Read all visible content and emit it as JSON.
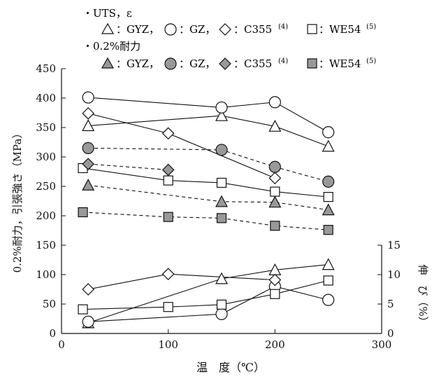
{
  "legend": {
    "group1_title": "・UTS，ε",
    "group2_title": "・0.2%耐力",
    "items": [
      {
        "label": "：GYZ，",
        "sup": ""
      },
      {
        "label": "：GZ，",
        "sup": ""
      },
      {
        "label": "：C355",
        "sup": "(4)"
      },
      {
        "label": "：WE54",
        "sup": "(5)"
      }
    ]
  },
  "chart_data": {
    "type": "line",
    "xlabel": "温　度（℃）",
    "ylabel": "0.2%耐力，引張強さ（MPa）",
    "y2label": "伸　び（%）",
    "xlim": [
      0,
      300
    ],
    "ylim": [
      0,
      450
    ],
    "y2lim": [
      0,
      15
    ],
    "xticks": [
      0,
      100,
      200,
      300
    ],
    "yticks": [
      0,
      50,
      100,
      150,
      200,
      250,
      300,
      350,
      400,
      450
    ],
    "y2ticks": [
      0,
      5,
      10,
      15
    ],
    "grid": false,
    "series": [
      {
        "name": "GYZ",
        "metric": "UTS",
        "axis": "left",
        "marker": "triangle",
        "fill": "open",
        "dash": "solid",
        "x": [
          25,
          150,
          200,
          250
        ],
        "y": [
          353,
          370,
          352,
          318
        ]
      },
      {
        "name": "GZ",
        "metric": "UTS",
        "axis": "left",
        "marker": "circle",
        "fill": "open",
        "dash": "solid",
        "x": [
          25,
          150,
          200,
          250
        ],
        "y": [
          401,
          384,
          393,
          342
        ]
      },
      {
        "name": "C355",
        "metric": "UTS",
        "axis": "left",
        "marker": "diamond",
        "fill": "open",
        "dash": "solid",
        "x": [
          25,
          100,
          200
        ],
        "y": [
          374,
          340,
          264
        ]
      },
      {
        "name": "WE54",
        "metric": "UTS",
        "axis": "left",
        "marker": "square",
        "fill": "open",
        "dash": "solid",
        "x": [
          20,
          100,
          150,
          200,
          250
        ],
        "y": [
          281,
          260,
          256,
          241,
          232
        ]
      },
      {
        "name": "GYZ",
        "metric": "0.2%耐力",
        "axis": "left",
        "marker": "triangle",
        "fill": "filled",
        "dash": "dashed",
        "x": [
          25,
          150,
          200,
          250
        ],
        "y": [
          252,
          224,
          223,
          210
        ]
      },
      {
        "name": "GZ",
        "metric": "0.2%耐力",
        "axis": "left",
        "marker": "circle",
        "fill": "filled",
        "dash": "dashed",
        "x": [
          25,
          150,
          200,
          250
        ],
        "y": [
          315,
          312,
          283,
          258
        ]
      },
      {
        "name": "C355",
        "metric": "0.2%耐力",
        "axis": "left",
        "marker": "diamond",
        "fill": "filled",
        "dash": "dashed",
        "x": [
          25,
          100
        ],
        "y": [
          288,
          278
        ]
      },
      {
        "name": "WE54",
        "metric": "0.2%耐力",
        "axis": "left",
        "marker": "square",
        "fill": "filled",
        "dash": "dashed",
        "x": [
          20,
          100,
          150,
          200,
          250
        ],
        "y": [
          206,
          198,
          196,
          183,
          176
        ]
      },
      {
        "name": "GYZ",
        "metric": "ε",
        "axis": "right",
        "marker": "triangle",
        "fill": "open",
        "dash": "solid",
        "x": [
          25,
          150,
          200,
          250
        ],
        "y": [
          1.8,
          9.3,
          10.8,
          11.7
        ]
      },
      {
        "name": "GZ",
        "metric": "ε",
        "axis": "right",
        "marker": "circle",
        "fill": "open",
        "dash": "solid",
        "x": [
          25,
          150,
          200,
          250
        ],
        "y": [
          2.0,
          3.3,
          8.0,
          5.7
        ]
      },
      {
        "name": "C355",
        "metric": "ε",
        "axis": "right",
        "marker": "diamond",
        "fill": "open",
        "dash": "solid",
        "x": [
          25,
          100,
          200
        ],
        "y": [
          7.5,
          10.1,
          9.1
        ]
      },
      {
        "name": "WE54",
        "metric": "ε",
        "axis": "right",
        "marker": "square",
        "fill": "open",
        "dash": "solid",
        "x": [
          20,
          100,
          150,
          200,
          250
        ],
        "y": [
          4.1,
          4.5,
          4.9,
          6.7,
          9.0
        ]
      }
    ]
  }
}
